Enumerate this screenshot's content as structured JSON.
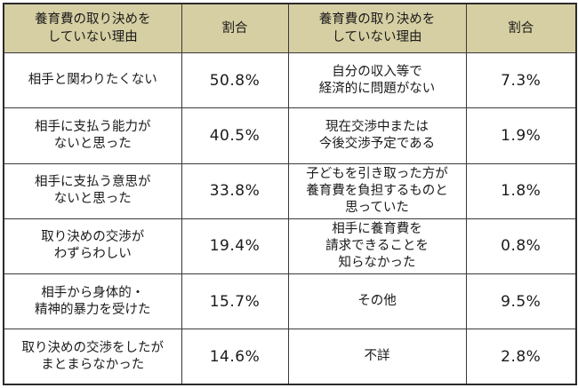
{
  "header": {
    "reason_left": "養育費の取り決めを\nしていない理由",
    "ratio_left": "割合",
    "reason_right": "養育費の取り決めを\nしていない理由",
    "ratio_right": "割合"
  },
  "colors": {
    "header_background": "#d6cfa3",
    "border": "#3a3a3a"
  },
  "rows": [
    {
      "left_reason": "相手と関わりたくない",
      "left_ratio": "50.8%",
      "right_reason": "自分の収入等で\n経済的に問題がない",
      "right_ratio": "7.3%"
    },
    {
      "left_reason": "相手に支払う能力が\nないと思った",
      "left_ratio": "40.5%",
      "right_reason": "現在交渉中または\n今後交渉予定である",
      "right_ratio": "1.9%"
    },
    {
      "left_reason": "相手に支払う意思が\nないと思った",
      "left_ratio": "33.8%",
      "right_reason": "子どもを引き取った方が\n養育費を負担するものと\n思っていた",
      "right_ratio": "1.8%"
    },
    {
      "left_reason": "取り決めの交渉が\nわずらわしい",
      "left_ratio": "19.4%",
      "right_reason": "相手に養育費を\n請求できることを\n知らなかった",
      "right_ratio": "0.8%"
    },
    {
      "left_reason": "相手から身体的・\n精神的暴力を受けた",
      "left_ratio": "15.7%",
      "right_reason": "その他",
      "right_ratio": "9.5%"
    },
    {
      "left_reason": "取り決めの交渉をしたが\nまとまらなかった",
      "left_ratio": "14.6%",
      "right_reason": "不詳",
      "right_ratio": "2.8%"
    }
  ]
}
